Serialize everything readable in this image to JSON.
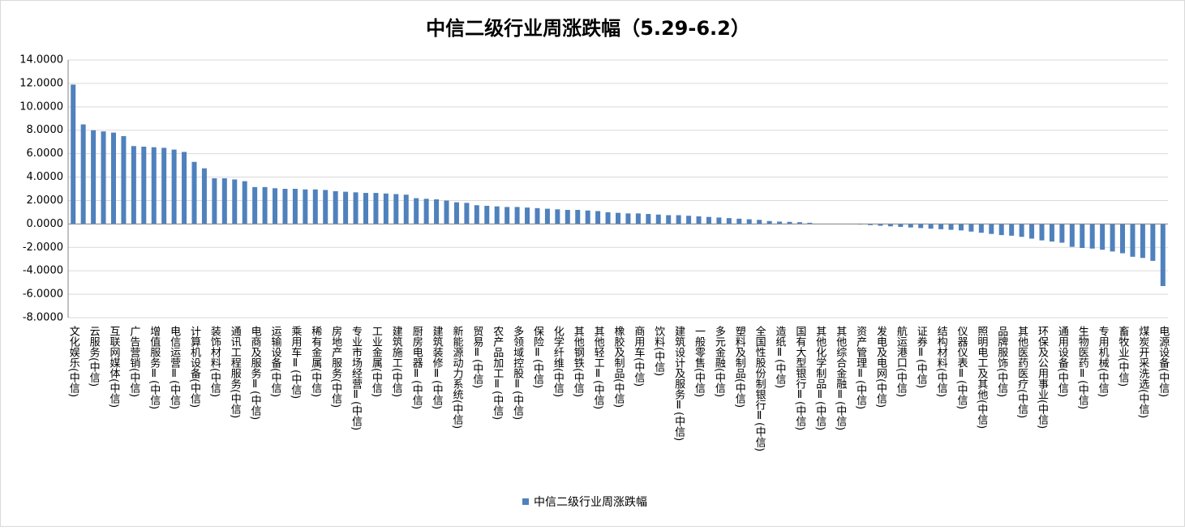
{
  "chart_data": {
    "type": "bar",
    "title": "中信二级行业周涨跌幅（5.29-6.2）",
    "categories": [
      "文化娱乐(中信)",
      null,
      "云服务(中信)",
      null,
      "互联网媒体(中信)",
      null,
      "广告营销(中信)",
      null,
      "增值服务Ⅱ(中信)",
      null,
      "电信运营Ⅱ(中信)",
      null,
      "计算机设备(中信)",
      null,
      "装饰材料(中信)",
      null,
      "通讯工程服务(中信)",
      null,
      "电商及服务Ⅱ(中信)",
      null,
      "运输设备(中信)",
      null,
      "乘用车Ⅱ(中信)",
      null,
      "稀有金属(中信)",
      null,
      "房地产服务(中信)",
      null,
      "专业市场经营Ⅱ(中信)",
      null,
      "工业金属(中信)",
      null,
      "建筑施工(中信)",
      null,
      "厨房电器Ⅱ(中信)",
      null,
      "建筑装修Ⅱ(中信)",
      null,
      "新能源动力系统(中信)",
      null,
      "贸易Ⅱ(中信)",
      null,
      "农产品加工Ⅱ(中信)",
      null,
      "多领域控股Ⅱ(中信)",
      null,
      "保险Ⅱ(中信)",
      null,
      "化学纤维(中信)",
      null,
      "其他钢铁(中信)",
      null,
      "其他轻工Ⅱ(中信)",
      null,
      "橡胶及制品(中信)",
      null,
      "商用车(中信)",
      null,
      "饮料(中信)",
      null,
      "建筑设计及服务Ⅱ(中信)",
      null,
      "一般零售(中信)",
      null,
      "多元金融(中信)",
      null,
      "塑料及制品(中信)",
      null,
      "全国性股份制银行Ⅱ(中信)",
      null,
      "造纸Ⅱ(中信)",
      null,
      "国有大型银行Ⅱ(中信)",
      null,
      "其他化学制品Ⅱ(中信)",
      null,
      "其他综合金融Ⅱ(中信)",
      null,
      "资产管理Ⅱ(中信)",
      null,
      "发电及电网(中信)",
      null,
      "航运港口(中信)",
      null,
      "证券Ⅱ(中信)",
      null,
      "结构材料(中信)",
      null,
      "仪器仪表Ⅱ(中信)",
      null,
      "照明电工及其他(中信)",
      null,
      "品牌服饰(中信)",
      null,
      "其他医药医疗(中信)",
      null,
      "环保及公用事业(中信)",
      null,
      "通用设备(中信)",
      null,
      "生物医药Ⅱ(中信)",
      null,
      "专用机械(中信)",
      null,
      "畜牧业(中信)",
      null,
      "煤炭开采洗选(中信)",
      null,
      "电源设备(中信)"
    ],
    "series": [
      {
        "name": "中信二级行业周涨跌幅",
        "color": "#4f81bd",
        "values": [
          11.9,
          8.5,
          8.0,
          7.9,
          7.8,
          7.5,
          6.65,
          6.6,
          6.55,
          6.5,
          6.35,
          6.15,
          5.3,
          4.75,
          3.9,
          3.9,
          3.8,
          3.65,
          3.15,
          3.15,
          3.05,
          3.0,
          3.0,
          2.95,
          2.95,
          2.9,
          2.8,
          2.75,
          2.7,
          2.65,
          2.65,
          2.6,
          2.55,
          2.5,
          2.2,
          2.15,
          2.1,
          2.0,
          1.85,
          1.8,
          1.6,
          1.55,
          1.5,
          1.45,
          1.45,
          1.4,
          1.35,
          1.3,
          1.25,
          1.2,
          1.2,
          1.15,
          1.1,
          1.0,
          0.95,
          0.9,
          0.9,
          0.85,
          0.8,
          0.75,
          0.75,
          0.7,
          0.65,
          0.6,
          0.55,
          0.5,
          0.45,
          0.4,
          0.35,
          0.25,
          0.2,
          0.18,
          0.15,
          0.1,
          0.02,
          0.01,
          0,
          -0.02,
          -0.05,
          -0.1,
          -0.15,
          -0.2,
          -0.25,
          -0.3,
          -0.35,
          -0.4,
          -0.45,
          -0.5,
          -0.55,
          -0.65,
          -0.75,
          -0.85,
          -0.95,
          -1.0,
          -1.1,
          -1.25,
          -1.4,
          -1.5,
          -1.6,
          -1.95,
          -2.05,
          -2.1,
          -2.2,
          -2.35,
          -2.5,
          -2.8,
          -2.9,
          -3.15,
          -5.3
        ]
      }
    ],
    "ylim": [
      -8,
      14
    ],
    "yticks": [
      {
        "value": -8,
        "label": "-8.0000"
      },
      {
        "value": -6,
        "label": "-6.0000"
      },
      {
        "value": -4,
        "label": "-4.0000"
      },
      {
        "value": -2,
        "label": "-2.0000"
      },
      {
        "value": 0,
        "label": "0.0000"
      },
      {
        "value": 2,
        "label": "2.0000"
      },
      {
        "value": 4,
        "label": "4.0000"
      },
      {
        "value": 6,
        "label": "6.0000"
      },
      {
        "value": 8,
        "label": "8.0000"
      },
      {
        "value": 10,
        "label": "10.0000"
      },
      {
        "value": 12,
        "label": "12.0000"
      },
      {
        "value": 14,
        "label": "14.0000"
      }
    ],
    "grid": true,
    "legend": "bottom"
  }
}
